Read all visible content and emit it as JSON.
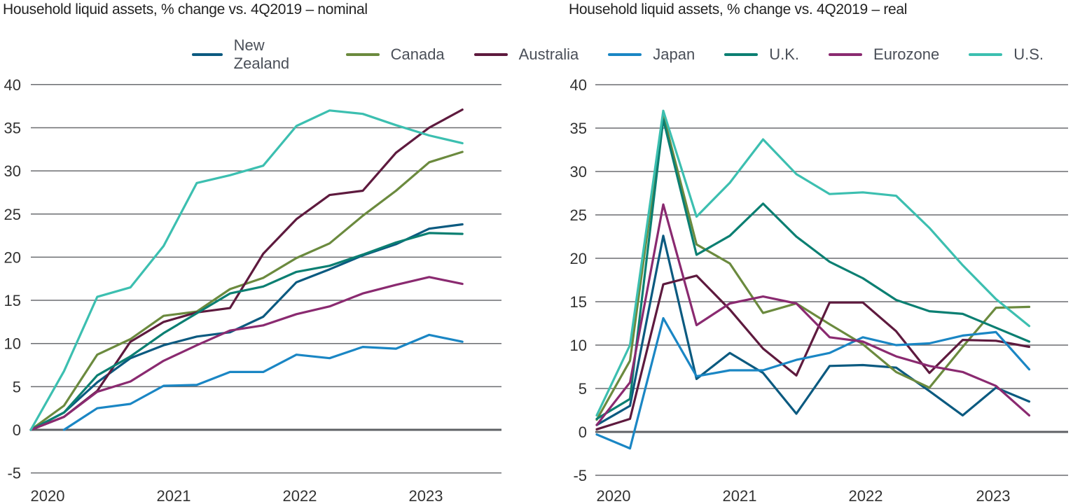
{
  "chart_data": [
    {
      "type": "line",
      "title": "Household liquid assets, % change vs. 4Q2019 – nominal",
      "x": [
        "4Q2019",
        "1Q2020",
        "2Q2020",
        "3Q2020",
        "4Q2020",
        "1Q2021",
        "2Q2021",
        "3Q2021",
        "4Q2021",
        "1Q2022",
        "2Q2022",
        "3Q2022",
        "4Q2022",
        "1Q2023"
      ],
      "x_tick_labels": [
        "2020",
        "2021",
        "2022",
        "2023"
      ],
      "y_tick_labels": [
        "-5",
        "0",
        "5",
        "10",
        "15",
        "20",
        "25",
        "30",
        "35",
        "40"
      ],
      "ylim": [
        -5,
        40
      ],
      "grid": "horizontal",
      "series": [
        {
          "name": "New Zealand",
          "color": "#0b5a80",
          "values": [
            0,
            2,
            5.5,
            8.3,
            9.8,
            10.8,
            11.3,
            13.1,
            17.1,
            18.6,
            20.2,
            21.5,
            23.3,
            23.8
          ]
        },
        {
          "name": "Canada",
          "color": "#6b8a3e",
          "values": [
            0,
            2.8,
            8.7,
            10.5,
            13.2,
            13.7,
            16.3,
            17.6,
            19.9,
            21.6,
            24.8,
            27.7,
            31,
            32.2
          ]
        },
        {
          "name": "Australia",
          "color": "#5e1a3e",
          "values": [
            0,
            1.5,
            4.5,
            10.2,
            12.5,
            13.6,
            14.1,
            20.4,
            24.4,
            27.2,
            27.7,
            32.1,
            35,
            37.1
          ]
        },
        {
          "name": "Japan",
          "color": "#1a86c4",
          "values": [
            null,
            0,
            2.5,
            3,
            5.1,
            5.2,
            6.7,
            6.7,
            8.7,
            8.3,
            9.6,
            9.4,
            11,
            10.2
          ]
        },
        {
          "name": "U.K.",
          "color": "#0b7f72",
          "values": [
            0,
            2,
            6.3,
            8.5,
            11.2,
            13.5,
            15.8,
            16.6,
            18.3,
            19,
            20.3,
            21.7,
            22.8,
            22.7
          ]
        },
        {
          "name": "Eurozone",
          "color": "#8a2a70",
          "values": [
            0,
            1.5,
            4.4,
            5.6,
            8,
            9.8,
            11.5,
            12.1,
            13.4,
            14.3,
            15.8,
            16.8,
            17.7,
            16.9
          ]
        },
        {
          "name": "U.S.",
          "color": "#3cbfb0",
          "values": [
            0,
            6.8,
            15.4,
            16.5,
            21.3,
            28.6,
            29.5,
            30.6,
            35.2,
            37,
            36.6,
            35.3,
            34.1,
            33.2
          ]
        }
      ]
    },
    {
      "type": "line",
      "title": "Household liquid assets, % change vs. 4Q2019 – real",
      "x": [
        "4Q2019",
        "1Q2020",
        "2Q2020",
        "3Q2020",
        "4Q2020",
        "1Q2021",
        "2Q2021",
        "3Q2021",
        "4Q2021",
        "1Q2022",
        "2Q2022",
        "3Q2022",
        "4Q2022",
        "1Q2023"
      ],
      "x_tick_labels": [
        "2020",
        "2021",
        "2022",
        "2023"
      ],
      "y_tick_labels": [
        "-5",
        "0",
        "5",
        "10",
        "15",
        "20",
        "25",
        "30",
        "35",
        "40"
      ],
      "ylim": [
        -5,
        40
      ],
      "grid": "horizontal",
      "series": [
        {
          "name": "New Zealand",
          "color": "#0b5a80",
          "values": [
            0.8,
            3,
            22.6,
            6.1,
            9.1,
            6.8,
            2.1,
            7.6,
            7.7,
            7.4,
            4.7,
            1.9,
            5.1,
            3.5
          ]
        },
        {
          "name": "Canada",
          "color": "#6b8a3e",
          "values": [
            1.4,
            8.2,
            36.5,
            21.6,
            19.4,
            13.7,
            14.8,
            12.4,
            10.1,
            6.9,
            5.1,
            9.8,
            14.3,
            14.4
          ]
        },
        {
          "name": "Australia",
          "color": "#5e1a3e",
          "values": [
            0.3,
            1.5,
            17,
            18,
            14.1,
            9.6,
            6.5,
            14.9,
            14.9,
            11.6,
            6.8,
            10.6,
            10.5,
            9.8
          ]
        },
        {
          "name": "Japan",
          "color": "#1a86c4",
          "values": [
            -0.3,
            -1.9,
            13.1,
            6.4,
            7.1,
            7.1,
            8.3,
            9.1,
            10.9,
            10,
            10.2,
            11.1,
            11.5,
            7.2
          ]
        },
        {
          "name": "U.K.",
          "color": "#0b7f72",
          "values": [
            1.5,
            3.8,
            36,
            20.4,
            22.6,
            26.3,
            22.5,
            19.6,
            17.7,
            15.2,
            13.9,
            13.6,
            12,
            10.4
          ]
        },
        {
          "name": "Eurozone",
          "color": "#8a2a70",
          "values": [
            0.8,
            5.7,
            26.2,
            12.3,
            14.8,
            15.6,
            14.8,
            10.9,
            10.4,
            8.7,
            7.6,
            6.9,
            5.3,
            1.9
          ]
        },
        {
          "name": "U.S.",
          "color": "#3cbfb0",
          "values": [
            1.9,
            10,
            37,
            24.8,
            28.7,
            33.7,
            29.7,
            27.4,
            27.6,
            27.2,
            23.5,
            19.2,
            15.3,
            12.2
          ]
        }
      ]
    }
  ],
  "legend": [
    "New Zealand",
    "Canada",
    "Australia",
    "Japan",
    "U.K.",
    "Eurozone",
    "U.S."
  ]
}
